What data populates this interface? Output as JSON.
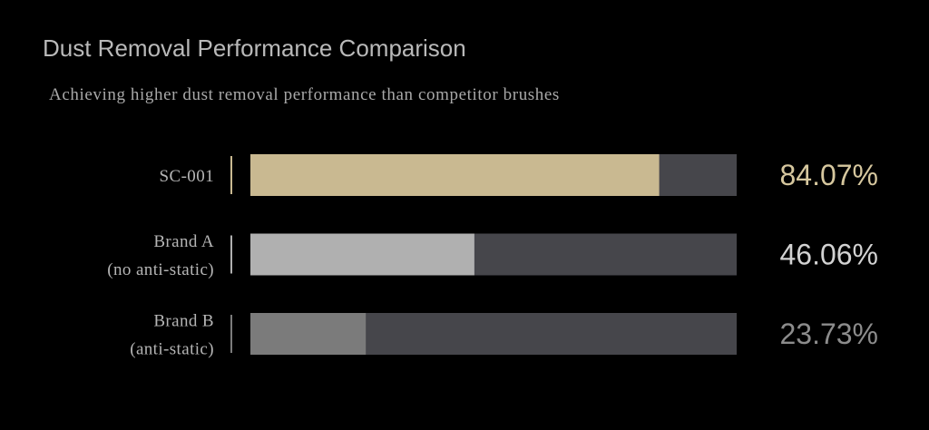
{
  "chart_data": {
    "type": "bar",
    "orientation": "horizontal",
    "title": "Dust Removal Performance Comparison",
    "subtitle": "Achieving higher dust removal performance than competitor brushes",
    "categories": [
      [
        "SC-001"
      ],
      [
        "Brand A",
        "(no anti-static)"
      ],
      [
        "Brand B",
        "(anti-static)"
      ]
    ],
    "values": [
      84.07,
      46.06,
      23.73
    ],
    "value_labels": [
      "84.07%",
      "46.06%",
      "23.73%"
    ],
    "colors": [
      "#c9b991",
      "#b0b0b0",
      "#7b7b7b"
    ],
    "label_colors": [
      "#d6c79e",
      "#d2d2d2",
      "#8c8c8c"
    ],
    "track_color": "#46464b",
    "xlim": [
      0,
      100
    ]
  }
}
